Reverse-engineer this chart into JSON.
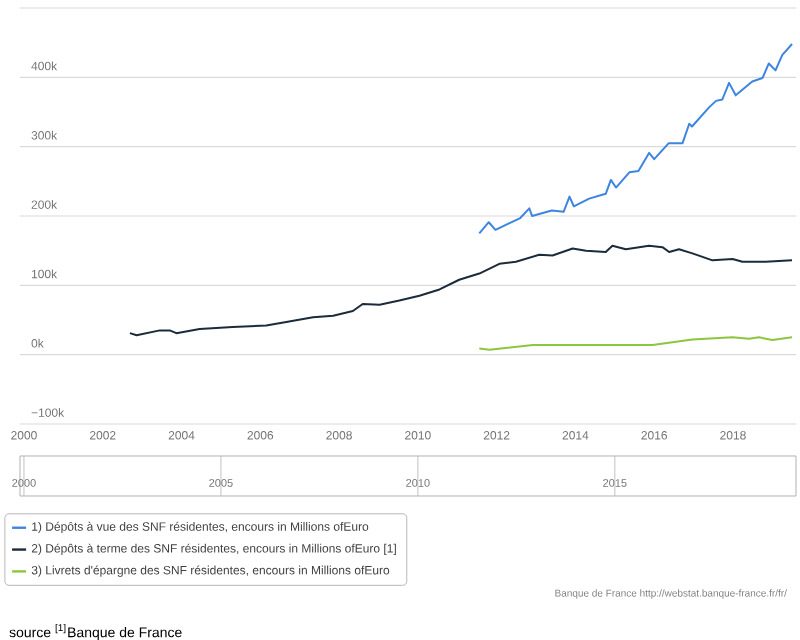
{
  "chart_data": {
    "type": "line",
    "xlim": [
      1999.9,
      2019.6
    ],
    "xticks": [
      2000,
      2002,
      2004,
      2006,
      2008,
      2010,
      2012,
      2014,
      2016,
      2018
    ],
    "x2lim": [
      1999.9,
      2019.6
    ],
    "x2ticks": [
      2000,
      2005,
      2010,
      2015
    ],
    "ylim": [
      -100000,
      500000
    ],
    "yticks": [
      {
        "value": -100000,
        "label": "−100k"
      },
      {
        "value": 0,
        "label": "0k"
      },
      {
        "value": 100000,
        "label": "100k"
      },
      {
        "value": 200000,
        "label": "200k"
      },
      {
        "value": 300000,
        "label": "300k"
      },
      {
        "value": 400000,
        "label": "400k"
      },
      {
        "value": 500000,
        "label": null
      }
    ],
    "grid": "y",
    "legend": "bottom",
    "marker": "none",
    "line_style": "solid",
    "series": [
      {
        "name": "1) Dépôts à vue des SNF résidentes, encours in Millions ofEuro",
        "color": "#3d85e0",
        "x": [
          2011.56,
          2011.8,
          2011.97,
          2012.3,
          2012.6,
          2012.83,
          2012.9,
          2013.4,
          2013.7,
          2013.85,
          2013.96,
          2014.35,
          2014.77,
          2014.9,
          2015.03,
          2015.37,
          2015.6,
          2015.87,
          2016.0,
          2016.37,
          2016.72,
          2016.89,
          2016.96,
          2017.4,
          2017.57,
          2017.73,
          2017.9,
          2018.07,
          2018.49,
          2018.75,
          2018.91,
          2019.08,
          2019.25,
          2019.5
        ],
        "values": [
          175000,
          191000,
          180000,
          189000,
          197000,
          211000,
          200000,
          208000,
          206000,
          228000,
          214000,
          225000,
          232000,
          252000,
          241000,
          263000,
          265000,
          291000,
          282000,
          305000,
          305000,
          333000,
          329000,
          357000,
          366000,
          368000,
          392000,
          374000,
          394000,
          399000,
          420000,
          410000,
          432000,
          448000
        ]
      },
      {
        "name": "2) Dépôts à terme des SNF résidentes, encours in Millions ofEuro [1]",
        "color": "#1c2b3a",
        "x": [
          2002.69,
          2002.86,
          2003.45,
          2003.7,
          2003.87,
          2004.46,
          2005.3,
          2006.15,
          2006.66,
          2007.34,
          2007.85,
          2008.35,
          2008.6,
          2009.03,
          2009.53,
          2010.04,
          2010.55,
          2011.05,
          2011.56,
          2012.07,
          2012.49,
          2013.08,
          2013.42,
          2013.93,
          2014.27,
          2014.77,
          2014.94,
          2015.28,
          2015.87,
          2016.21,
          2016.38,
          2016.63,
          2016.97,
          2017.48,
          2017.99,
          2018.24,
          2018.83,
          2019.5
        ],
        "values": [
          31000,
          28000,
          35000,
          35000,
          31000,
          37000,
          40000,
          42000,
          47000,
          54000,
          56000,
          63000,
          73000,
          72000,
          78000,
          85000,
          94000,
          108000,
          117000,
          131000,
          134000,
          144000,
          143000,
          153000,
          150000,
          148000,
          157000,
          152000,
          157000,
          155000,
          148000,
          152000,
          146000,
          136000,
          138000,
          134000,
          134000,
          136000
        ]
      },
      {
        "name": "3) Livrets d'épargne des SNF résidentes, encours in Millions ofEuro",
        "color": "#8cc63f",
        "x": [
          2011.56,
          2011.82,
          2012.92,
          2014.6,
          2015.96,
          2016.97,
          2017.99,
          2018.41,
          2018.66,
          2019.0,
          2019.5
        ],
        "values": [
          9000,
          7000,
          14000,
          14000,
          14000,
          22000,
          25000,
          23000,
          25000,
          21000,
          25000
        ]
      }
    ],
    "annotations": [
      "Banque de France http://webstat.banque-france.fr/fr/",
      "source $^{[1]}$Banque de France"
    ]
  }
}
